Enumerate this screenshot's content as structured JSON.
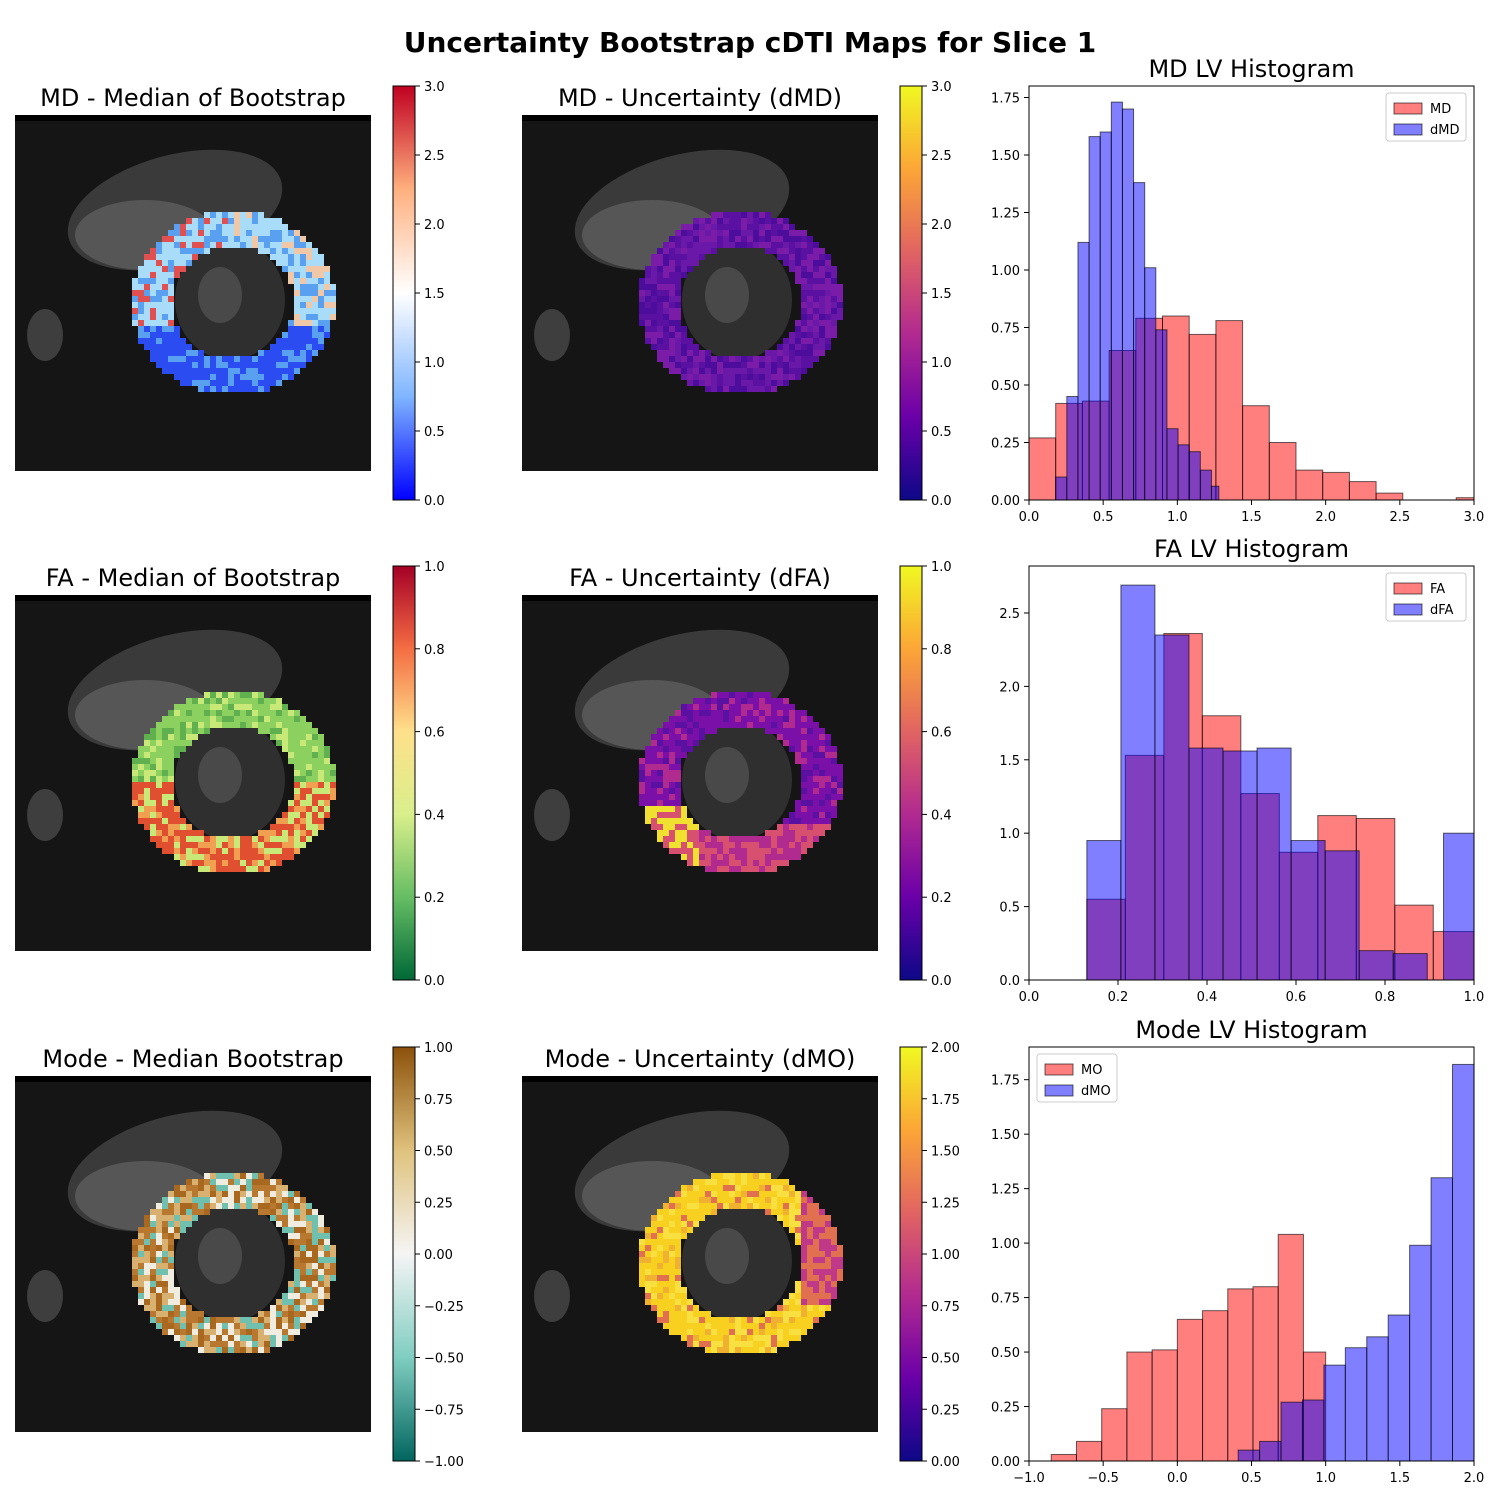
{
  "figure": {
    "title": "Uncertainty Bootstrap cDTI Maps for Slice 1"
  },
  "colors": {
    "md_series": "#ff0000",
    "uncertainty_series": "#0000ff",
    "axes": "#000000",
    "background_mri": "#151515"
  },
  "maps": [
    {
      "title": "MD - Median of Bootstrap",
      "colormap": "bwr",
      "ring_colors": [
        "#2a4cf0",
        "#5aa0f0",
        "#a8dcf8",
        "#f0c8a8",
        "#e05050"
      ],
      "cbar": {
        "min": 0.0,
        "max": 3.0,
        "ticks": [
          "0.0",
          "0.5",
          "1.0",
          "1.5",
          "2.0",
          "2.5",
          "3.0"
        ],
        "colors": [
          "#0000ff",
          "#7fb5ff",
          "#ffffff",
          "#ffb07f",
          "#c00020"
        ]
      }
    },
    {
      "title": "MD - Uncertainty (dMD)",
      "colormap": "plasma",
      "ring_colors": [
        "#5a10a0",
        "#6a18a8",
        "#7a1ca8",
        "#4c0c9c"
      ],
      "cbar": {
        "min": 0.0,
        "max": 3.0,
        "ticks": [
          "0.0",
          "0.5",
          "1.0",
          "1.5",
          "2.0",
          "2.5",
          "3.0"
        ],
        "colors": [
          "#0d0887",
          "#6a00a8",
          "#b12a90",
          "#e16462",
          "#fca636",
          "#f0f921"
        ]
      }
    },
    {
      "title": "FA - Median of Bootstrap",
      "colormap": "RdYlGn_r",
      "ring_colors": [
        "#8cd060",
        "#c8e878",
        "#f0a050",
        "#e05030",
        "#60b050"
      ],
      "cbar": {
        "min": 0.0,
        "max": 1.0,
        "ticks": [
          "0.0",
          "0.2",
          "0.4",
          "0.6",
          "0.8",
          "1.0"
        ],
        "colors": [
          "#006837",
          "#66bd63",
          "#d9ef8b",
          "#fee08b",
          "#f46d43",
          "#a50026"
        ]
      }
    },
    {
      "title": "FA - Uncertainty (dFA)",
      "colormap": "plasma",
      "ring_colors": [
        "#7a10a8",
        "#b02a90",
        "#d85070",
        "#f0e030",
        "#5a10a0"
      ],
      "cbar": {
        "min": 0.0,
        "max": 1.0,
        "ticks": [
          "0.0",
          "0.2",
          "0.4",
          "0.6",
          "0.8",
          "1.0"
        ],
        "colors": [
          "#0d0887",
          "#6a00a8",
          "#b12a90",
          "#e16462",
          "#fca636",
          "#f0f921"
        ]
      }
    },
    {
      "title": "Mode - Median Bootstrap",
      "colormap": "BrBG_r",
      "ring_colors": [
        "#b87830",
        "#d8b070",
        "#f0ece0",
        "#70c0b0",
        "#a86820"
      ],
      "cbar": {
        "min": -1.0,
        "max": 1.0,
        "ticks": [
          "−1.00",
          "−0.75",
          "−0.50",
          "−0.25",
          "0.00",
          "0.25",
          "0.50",
          "0.75",
          "1.00"
        ],
        "colors": [
          "#01665e",
          "#80cdc1",
          "#f5f5f5",
          "#dfc27d",
          "#8c510a"
        ]
      }
    },
    {
      "title": "Mode - Uncertainty (dMO)",
      "colormap": "plasma",
      "ring_colors": [
        "#f8d020",
        "#f0b030",
        "#e07050",
        "#c03888",
        "#f8e040"
      ],
      "cbar": {
        "min": 0.0,
        "max": 2.0,
        "ticks": [
          "0.00",
          "0.25",
          "0.50",
          "0.75",
          "1.00",
          "1.25",
          "1.50",
          "1.75",
          "2.00"
        ],
        "colors": [
          "#0d0887",
          "#6a00a8",
          "#b12a90",
          "#e16462",
          "#fca636",
          "#f0f921"
        ]
      }
    }
  ],
  "chart_data": [
    {
      "type": "bar",
      "title": "MD LV Histogram",
      "xlim": [
        0.0,
        3.0
      ],
      "ylim": [
        0.0,
        1.8
      ],
      "xticks": [
        "0.0",
        "0.5",
        "1.0",
        "1.5",
        "2.0",
        "2.5",
        "3.0"
      ],
      "yticks": [
        "0.00",
        "0.25",
        "0.50",
        "0.75",
        "1.00",
        "1.25",
        "1.50",
        "1.75"
      ],
      "legend": "top-right",
      "series": [
        {
          "name": "MD",
          "color": "#ff0000",
          "bin_edges": [
            0.0,
            0.18,
            0.36,
            0.54,
            0.72,
            0.9,
            1.08,
            1.26,
            1.44,
            1.62,
            1.8,
            1.98,
            2.16,
            2.34,
            2.52,
            2.7,
            2.88,
            3.0
          ],
          "values": [
            0.27,
            0.42,
            0.43,
            0.65,
            0.79,
            0.8,
            0.72,
            0.78,
            0.41,
            0.25,
            0.13,
            0.12,
            0.08,
            0.03,
            0.0,
            0.0,
            0.01
          ]
        },
        {
          "name": "dMD",
          "color": "#0000ff",
          "bin_edges": [
            0.18,
            0.255,
            0.33,
            0.405,
            0.48,
            0.555,
            0.63,
            0.705,
            0.78,
            0.855,
            0.93,
            1.005,
            1.08,
            1.155,
            1.23,
            1.28
          ],
          "values": [
            0.1,
            0.45,
            1.12,
            1.58,
            1.6,
            1.73,
            1.7,
            1.38,
            1.01,
            0.74,
            0.31,
            0.24,
            0.21,
            0.13,
            0.06
          ]
        }
      ]
    },
    {
      "type": "bar",
      "title": "FA LV Histogram",
      "xlim": [
        0.0,
        1.0
      ],
      "ylim": [
        0.0,
        2.82
      ],
      "xticks": [
        "0.0",
        "0.2",
        "0.4",
        "0.6",
        "0.8",
        "1.0"
      ],
      "yticks": [
        "0.0",
        "0.5",
        "1.0",
        "1.5",
        "2.0",
        "2.5"
      ],
      "legend": "top-right",
      "series": [
        {
          "name": "FA",
          "color": "#ff0000",
          "bin_edges": [
            0.13,
            0.2165,
            0.303,
            0.3895,
            0.476,
            0.5625,
            0.649,
            0.7355,
            0.822,
            0.9085,
            1.0
          ],
          "values": [
            0.55,
            1.53,
            2.36,
            1.8,
            1.27,
            0.87,
            1.12,
            1.1,
            0.51,
            0.33
          ]
        },
        {
          "name": "dFA",
          "color": "#0000ff",
          "bin_edges": [
            0.13,
            0.2065,
            0.283,
            0.3595,
            0.436,
            0.5125,
            0.589,
            0.6655,
            0.742,
            0.8185,
            0.895,
            0.9315,
            1.0
          ],
          "values": [
            0.95,
            2.69,
            2.35,
            1.58,
            1.56,
            1.58,
            0.95,
            0.88,
            0.2,
            0.18,
            0.0,
            1.0
          ]
        }
      ]
    },
    {
      "type": "bar",
      "title": "Mode LV Histogram",
      "xlim": [
        -1.0,
        2.0
      ],
      "ylim": [
        0.0,
        1.9
      ],
      "xticks": [
        "−1.0",
        "−0.5",
        "0.0",
        "0.5",
        "1.0",
        "1.5",
        "2.0"
      ],
      "yticks": [
        "0.00",
        "0.25",
        "0.50",
        "0.75",
        "1.00",
        "1.25",
        "1.50",
        "1.75"
      ],
      "legend": "top-left",
      "series": [
        {
          "name": "MO",
          "color": "#ff0000",
          "bin_edges": [
            -0.85,
            -0.68,
            -0.51,
            -0.34,
            -0.17,
            0.0,
            0.17,
            0.34,
            0.51,
            0.68,
            0.85,
            1.0
          ],
          "values": [
            0.03,
            0.09,
            0.24,
            0.5,
            0.51,
            0.65,
            0.69,
            0.79,
            0.8,
            1.04,
            0.5
          ]
        },
        {
          "name": "dMO",
          "color": "#0000ff",
          "bin_edges": [
            0.41,
            0.5545,
            0.699,
            0.8435,
            0.988,
            1.1325,
            1.277,
            1.4215,
            1.566,
            1.7105,
            1.855,
            2.0
          ],
          "values": [
            0.05,
            0.09,
            0.27,
            0.28,
            0.44,
            0.52,
            0.57,
            0.67,
            0.99,
            1.3,
            1.82
          ]
        }
      ]
    }
  ]
}
